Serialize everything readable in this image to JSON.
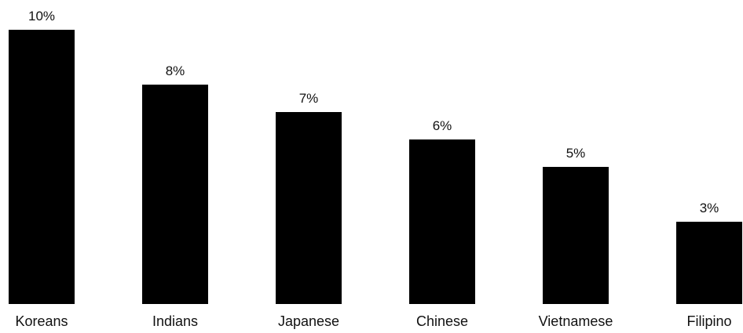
{
  "chart_data": {
    "type": "bar",
    "categories": [
      "Koreans",
      "Indians",
      "Japanese",
      "Chinese",
      "Vietnamese",
      "Filipino"
    ],
    "values": [
      10,
      8,
      7,
      6,
      5,
      3
    ],
    "value_labels": [
      "10%",
      "8%",
      "7%",
      "6%",
      "5%",
      "3%"
    ],
    "title": "",
    "xlabel": "",
    "ylabel": "",
    "ylim": [
      0,
      10
    ],
    "grid": false,
    "legend": "none",
    "bar_color": "#000000"
  }
}
